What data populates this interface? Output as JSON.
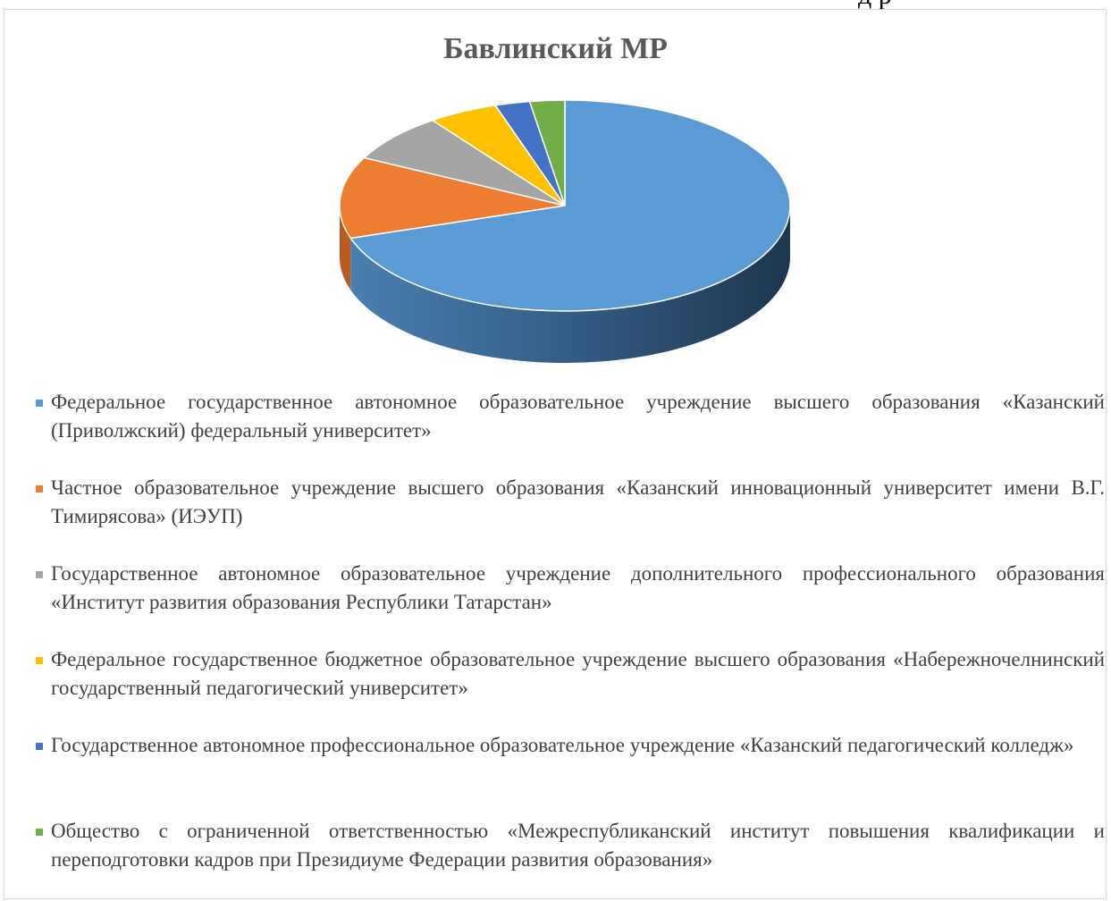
{
  "page": {
    "top_fragment": "д    р"
  },
  "chart_data": {
    "type": "pie",
    "style": "3d",
    "title": "Бавлинский МР",
    "legend_position": "bottom",
    "categories": [
      "Федеральное государственное автономное образовательное учреждение высшего образования «Казанский (Приволжский) федеральный университет»",
      "Частное образовательное учреждение высшего образования «Казанский инновационный университет имени В.Г. Тимирясова» (ИЭУП)",
      "Государственное автономное образовательное учреждение дополнительного профессионального образования «Институт развития образования Республики Татарстан»",
      "Федеральное государственное бюджетное образовательное учреждение высшего образования «Набережночелнинский государственный педагогический университет»",
      "Государственное автономное профессиональное образовательное учреждение «Казанский педагогический колледж»",
      "Общество с ограниченной ответственностью «Межреспубликанский институт повышения квалификации и переподготовки кадров при Президиуме Федерации развития образования»"
    ],
    "values": [
      70,
      12.5,
      7.5,
      5,
      2.5,
      2.5
    ],
    "colors": [
      "#5b9bd5",
      "#ed7d31",
      "#a5a5a5",
      "#ffc000",
      "#4472c4",
      "#70ad47"
    ]
  }
}
